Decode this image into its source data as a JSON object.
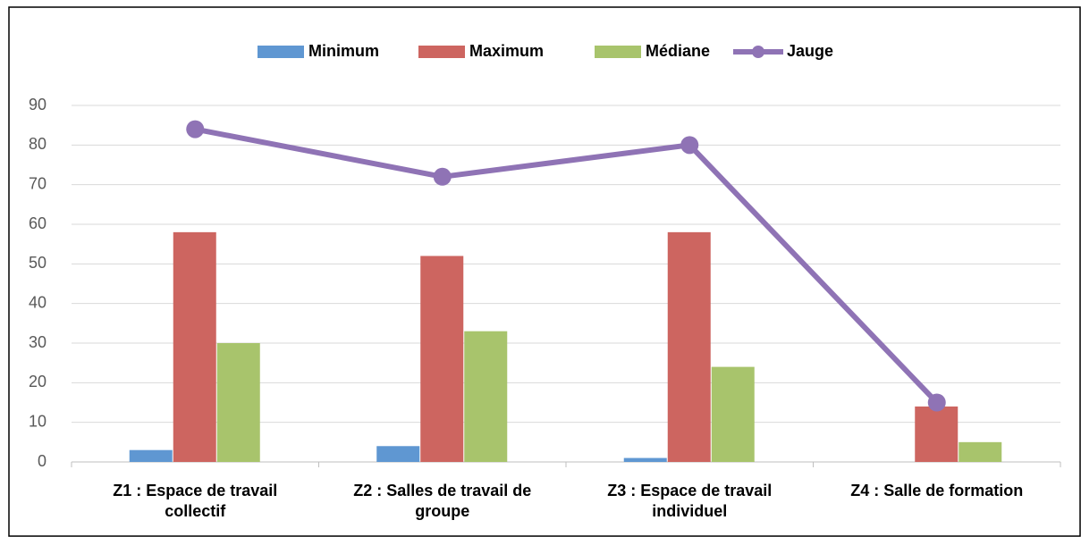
{
  "chart_data": {
    "type": "bar",
    "categories": [
      "Z1 : Espace de travail collectif",
      "Z2 : Salles de travail de groupe",
      "Z3 : Espace de travail individuel",
      "Z4 : Salle de formation"
    ],
    "series": [
      {
        "name": "Minimum",
        "color": "#5f97d2",
        "values": [
          3,
          4,
          1,
          0
        ]
      },
      {
        "name": "Maximum",
        "color": "#cd6560",
        "values": [
          58,
          52,
          58,
          14
        ]
      },
      {
        "name": "Médiane",
        "color": "#a8c46c",
        "values": [
          30,
          33,
          24,
          5
        ]
      },
      {
        "name": "Jauge",
        "color": "#8f73b5",
        "type": "line",
        "values": [
          84,
          72,
          80,
          15
        ]
      }
    ],
    "ylim": [
      0,
      90
    ],
    "yticks": [
      0,
      10,
      20,
      30,
      40,
      50,
      60,
      70,
      80,
      90
    ],
    "grid": true,
    "legend": "top"
  }
}
